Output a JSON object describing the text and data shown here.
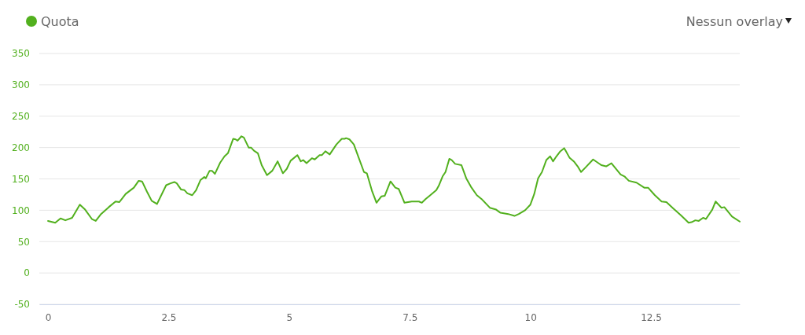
{
  "chart_data": {
    "type": "line",
    "annotations": [
      "Nessun overlay"
    ],
    "xlim": [
      -0.18,
      14.34
    ],
    "xticks": [
      0,
      2.5,
      5,
      7.5,
      10,
      12.5
    ],
    "ylim": [
      -50,
      350
    ],
    "yticks": [
      -50,
      0,
      50,
      100,
      150,
      200,
      250,
      300,
      350
    ],
    "grid": "y",
    "legend": "top left",
    "marker": "none",
    "line_style": "solid",
    "series": [
      {
        "name": "Quota",
        "color": "#52b01e",
        "x": [
          0,
          0.15,
          0.26,
          0.36,
          0.5,
          0.66,
          0.77,
          0.91,
          0.99,
          1.1,
          1.26,
          1.4,
          1.48,
          1.61,
          1.78,
          1.88,
          1.95,
          2.05,
          2.15,
          2.26,
          2.45,
          2.54,
          2.62,
          2.67,
          2.76,
          2.83,
          2.89,
          2.99,
          3.07,
          3.16,
          3.24,
          3.27,
          3.35,
          3.4,
          3.46,
          3.57,
          3.66,
          3.73,
          3.84,
          3.89,
          3.93,
          4.01,
          4.06,
          4.16,
          4.21,
          4.27,
          4.35,
          4.43,
          4.54,
          4.65,
          4.76,
          4.87,
          4.95,
          5.03,
          5.17,
          5.24,
          5.29,
          5.36,
          5.47,
          5.53,
          5.63,
          5.68,
          5.75,
          5.84,
          5.98,
          6.09,
          6.15,
          6.18,
          6.25,
          6.34,
          6.44,
          6.55,
          6.61,
          6.72,
          6.81,
          6.91,
          6.98,
          7.1,
          7.2,
          7.27,
          7.39,
          7.54,
          7.69,
          7.75,
          7.83,
          7.91,
          8.05,
          8.1,
          8.18,
          8.24,
          8.32,
          8.37,
          8.44,
          8.57,
          8.67,
          8.78,
          8.89,
          9,
          9.16,
          9.29,
          9.38,
          9.54,
          9.67,
          9.76,
          9.89,
          10,
          10.08,
          10.16,
          10.24,
          10.33,
          10.41,
          10.47,
          10.54,
          10.62,
          10.7,
          10.73,
          10.81,
          10.9,
          10.98,
          11.05,
          11.14,
          11.3,
          11.47,
          11.57,
          11.68,
          11.87,
          11.95,
          12.04,
          12.2,
          12.36,
          12.44,
          12.58,
          12.72,
          12.82,
          12.96,
          13.12,
          13.28,
          13.34,
          13.42,
          13.49,
          13.58,
          13.64,
          13.77,
          13.84,
          13.96,
          14.02,
          14.18,
          14.34
        ],
        "values": [
          83,
          80,
          87,
          84,
          88,
          109,
          101,
          86,
          83,
          94,
          105,
          114,
          113,
          126,
          136,
          147,
          146,
          130,
          115,
          110,
          140,
          143,
          145,
          143,
          133,
          132,
          127,
          124,
          132,
          148,
          153,
          151,
          163,
          163,
          158,
          176,
          186,
          191,
          214,
          213,
          211,
          218,
          216,
          200,
          200,
          195,
          191,
          172,
          156,
          163,
          178,
          159,
          166,
          179,
          188,
          178,
          180,
          175,
          183,
          181,
          188,
          188,
          194,
          189,
          205,
          214,
          214,
          215,
          213,
          205,
          184,
          161,
          159,
          130,
          112,
          122,
          123,
          146,
          136,
          134,
          112,
          114,
          114,
          112,
          118,
          123,
          132,
          139,
          154,
          161,
          182,
          180,
          174,
          172,
          151,
          136,
          124,
          117,
          104,
          101,
          96,
          94,
          91,
          94,
          100,
          109,
          126,
          151,
          161,
          180,
          186,
          178,
          186,
          194,
          199,
          195,
          184,
          178,
          170,
          161,
          168,
          181,
          172,
          170,
          175,
          157,
          154,
          147,
          144,
          136,
          136,
          124,
          114,
          113,
          103,
          92,
          80,
          81,
          84,
          83,
          88,
          86,
          101,
          114,
          104,
          105,
          90,
          82
        ]
      }
    ]
  }
}
